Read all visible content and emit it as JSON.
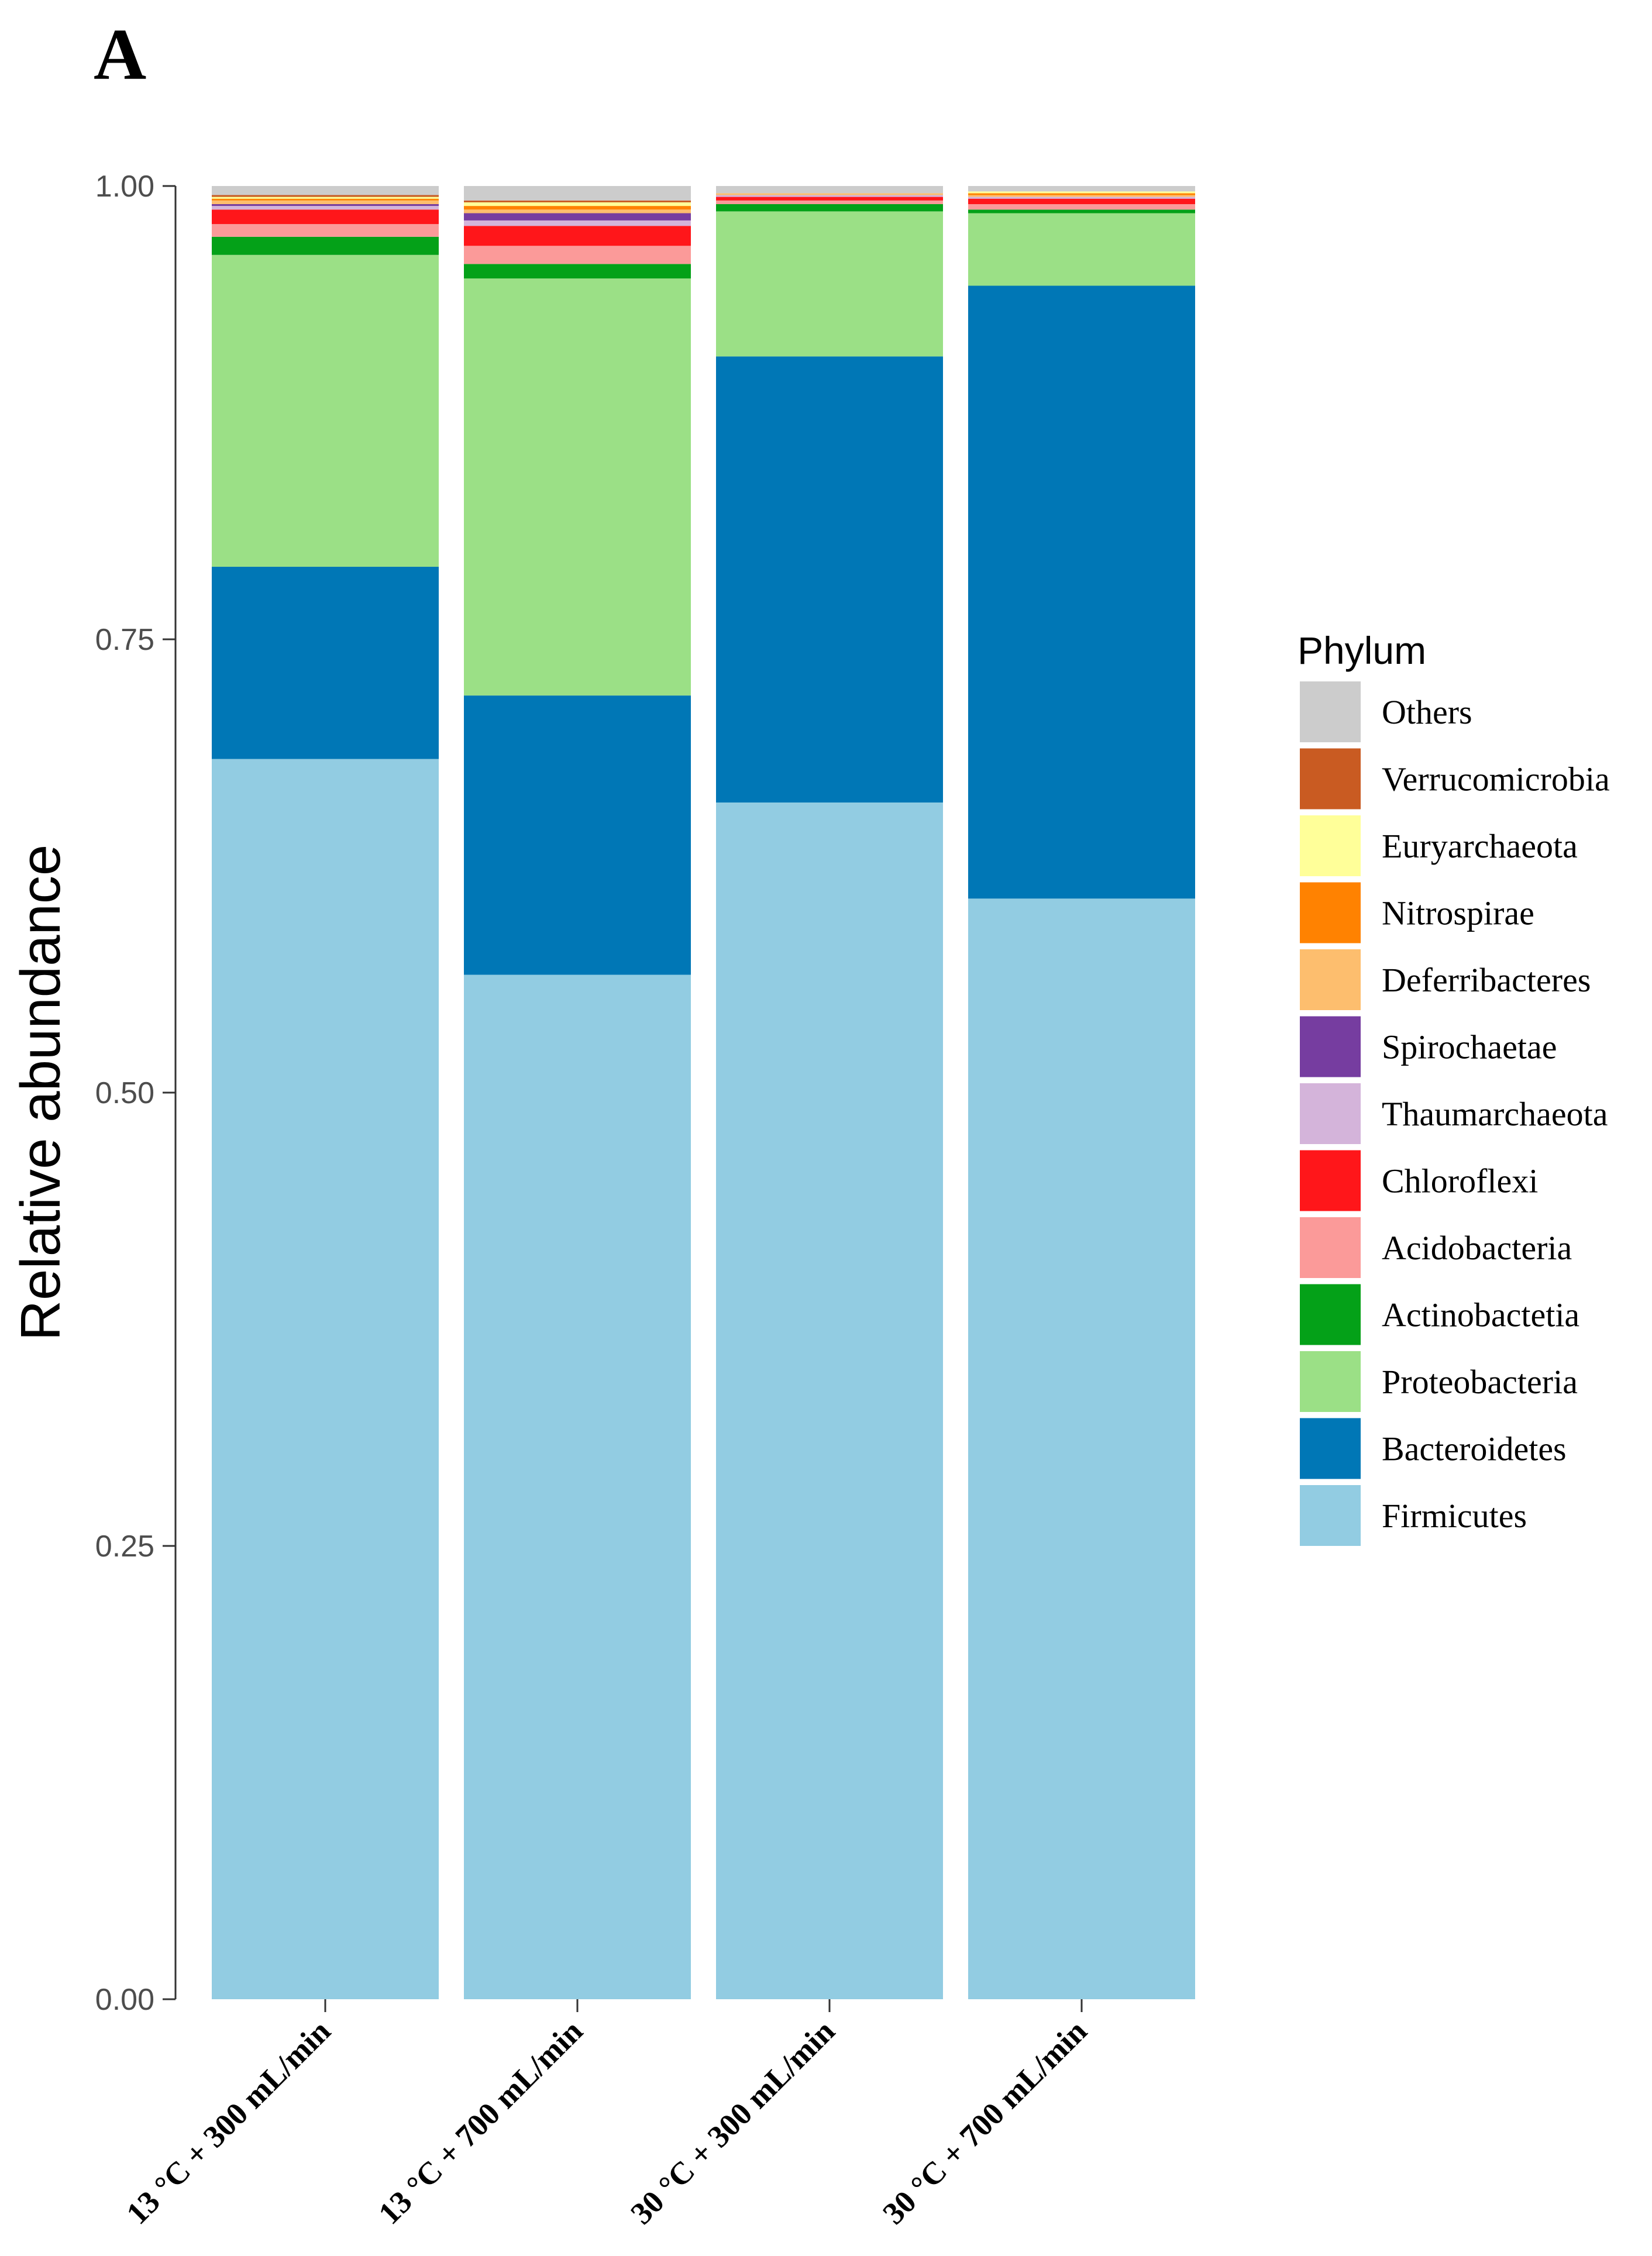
{
  "panel_label": "A",
  "chart_data": {
    "type": "bar",
    "stacked": true,
    "ylabel": "Relative abundance",
    "xlabel": "",
    "ylim": [
      0,
      1
    ],
    "yticks": [
      "0.00",
      "0.25",
      "0.50",
      "0.75",
      "1.00"
    ],
    "ytick_values": [
      0,
      0.25,
      0.5,
      0.75,
      1.0
    ],
    "categories": [
      "13 °C + 300 mL/min",
      "13 °C + 700 mL/min",
      "30 °C + 300 mL/min",
      "30 °C + 700 mL/min"
    ],
    "legend_title": "Phylum",
    "legend_position": "right",
    "grid": false,
    "series": [
      {
        "name": "Firmicutes",
        "color": "#92CCE2",
        "values": [
          0.684,
          0.565,
          0.66,
          0.607
        ]
      },
      {
        "name": "Bacteroidetes",
        "color": "#0077B6",
        "values": [
          0.106,
          0.154,
          0.246,
          0.338
        ]
      },
      {
        "name": "Proteobacteria",
        "color": "#9BE086",
        "values": [
          0.172,
          0.23,
          0.08,
          0.04
        ]
      },
      {
        "name": "Actinobactetia",
        "color": "#04A118",
        "values": [
          0.01,
          0.008,
          0.004,
          0.002
        ]
      },
      {
        "name": "Acidobacteria",
        "color": "#FB9A99",
        "values": [
          0.007,
          0.01,
          0.002,
          0.003
        ]
      },
      {
        "name": "Chloroflexi",
        "color": "#FF161A",
        "values": [
          0.008,
          0.011,
          0.002,
          0.003
        ]
      },
      {
        "name": "Thaumarchaeota",
        "color": "#D4B4DA",
        "values": [
          0.002,
          0.003,
          0.001,
          0.001
        ]
      },
      {
        "name": "Spirochaetae",
        "color": "#763DA0",
        "values": [
          0.001,
          0.004,
          0.0,
          0.0
        ]
      },
      {
        "name": "Deferribacteres",
        "color": "#FDBE6E",
        "values": [
          0.002,
          0.002,
          0.001,
          0.001
        ]
      },
      {
        "name": "Nitrospirae",
        "color": "#FF8201",
        "values": [
          0.001,
          0.002,
          0.0,
          0.001
        ]
      },
      {
        "name": "Euryarchaeota",
        "color": "#FFFF99",
        "values": [
          0.001,
          0.002,
          0.0,
          0.001
        ]
      },
      {
        "name": "Verrucomicrobia",
        "color": "#C95B22",
        "values": [
          0.001,
          0.001,
          0.0,
          0.0
        ]
      },
      {
        "name": "Others",
        "color": "#CCCCCC",
        "values": [
          0.005,
          0.008,
          0.004,
          0.003
        ]
      }
    ]
  }
}
